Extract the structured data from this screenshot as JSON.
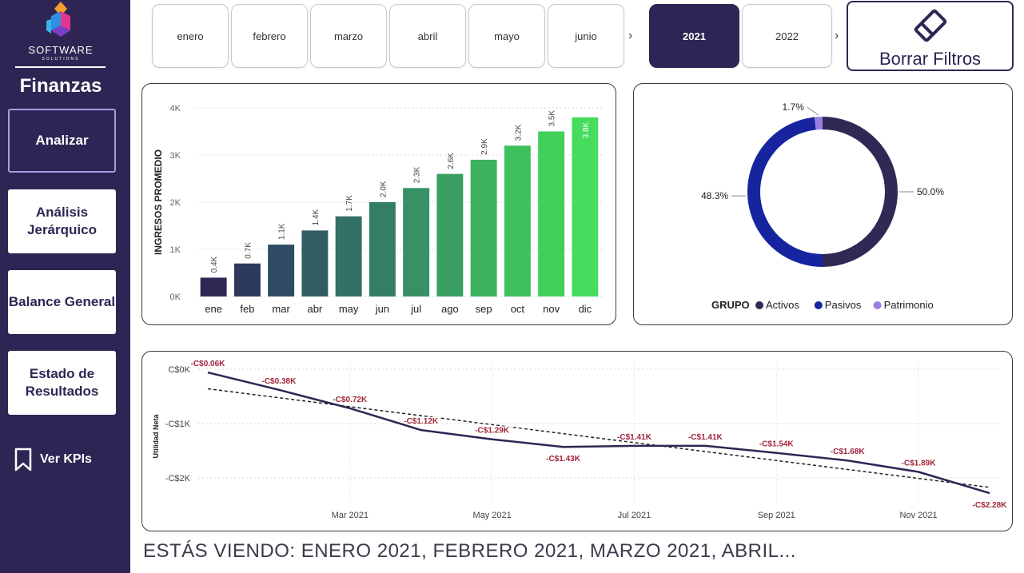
{
  "sidebar": {
    "logo_text": "SOFTWARE",
    "logo_sub": "SOLUTIONS",
    "title": "Finanzas",
    "nav": [
      {
        "label": "Analizar",
        "active": true
      },
      {
        "label": "Análisis Jerárquico",
        "active": false
      },
      {
        "label": "Balance General",
        "active": false
      },
      {
        "label": "Estado de Resultados",
        "active": false
      }
    ],
    "kpi_label": "Ver KPIs",
    "kpi_icon": "bookmark-icon"
  },
  "months": [
    "enero",
    "febrero",
    "marzo",
    "abril",
    "mayo",
    "junio"
  ],
  "years": [
    {
      "label": "2021",
      "selected": true
    },
    {
      "label": "2022",
      "selected": false
    }
  ],
  "clear_filters": {
    "label": "Borrar Filtros",
    "icon": "eraser-icon"
  },
  "colors": {
    "sidebar": "#2f2554",
    "activos": "#2e2955",
    "pasivos": "#1624a0",
    "patrimonio": "#9a7fe0",
    "line": "#2f2554",
    "neg_label": "#a0263a"
  },
  "chart_data": [
    {
      "type": "bar",
      "ylabel": "INGRESOS PROMEDIO",
      "categories": [
        "ene",
        "feb",
        "mar",
        "abr",
        "may",
        "jun",
        "jul",
        "ago",
        "sep",
        "oct",
        "nov",
        "dic"
      ],
      "values": [
        0.4,
        0.7,
        1.1,
        1.4,
        1.7,
        2.0,
        2.3,
        2.6,
        2.9,
        3.2,
        3.5,
        3.8
      ],
      "value_labels": [
        "0.4K",
        "0.7K",
        "1.1K",
        "1.4K",
        "1.7K",
        "2.0K",
        "2.3K",
        "2.6K",
        "2.9K",
        "3.2K",
        "3.5K",
        "3.8K"
      ],
      "yticks": [
        "0K",
        "1K",
        "2K",
        "3K",
        "4K"
      ],
      "ylim": [
        0,
        4
      ],
      "unit": "K",
      "colors": [
        "#2e2854",
        "#2d3a5e",
        "#2f4a63",
        "#315c64",
        "#337065",
        "#357e66",
        "#389066",
        "#3aa062",
        "#3cb15e",
        "#3ec05c",
        "#40cf5a",
        "#47dc5e"
      ],
      "grid": true
    },
    {
      "type": "pie",
      "variant": "donut",
      "legend_title": "GRUPO",
      "labels": [
        "Activos",
        "Pasivos",
        "Patrimonio"
      ],
      "values": [
        50.0,
        48.3,
        1.7
      ],
      "value_labels": [
        "50.0%",
        "48.3%",
        "1.7%"
      ],
      "colors": [
        "#2e2955",
        "#1624a0",
        "#9a7fe0"
      ],
      "legend_position": "bottom"
    },
    {
      "type": "line",
      "ylabel": "Utilidad Neta",
      "x": [
        "2021-01",
        "2021-02",
        "2021-03",
        "2021-04",
        "2021-05",
        "2021-06",
        "2021-07",
        "2021-08",
        "2021-09",
        "2021-10",
        "2021-11",
        "2021-12"
      ],
      "values": [
        -0.06,
        -0.38,
        -0.72,
        -1.12,
        -1.29,
        -1.43,
        -1.41,
        -1.41,
        -1.54,
        -1.68,
        -1.89,
        -2.28
      ],
      "value_labels": [
        "-C$0.06K",
        "-C$0.38K",
        "-C$0.72K",
        "-C$1.12K",
        "-C$1.29K",
        "-C$1.43K",
        "-C$1.41K",
        "-C$1.41K",
        "-C$1.54K",
        "-C$1.68K",
        "-C$1.89K",
        "-C$2.28K"
      ],
      "xticks": [
        "Mar 2021",
        "May 2021",
        "Jul 2021",
        "Sep 2021",
        "Nov 2021"
      ],
      "xtick_months": [
        "2021-03",
        "2021-05",
        "2021-07",
        "2021-09",
        "2021-11"
      ],
      "yticks": [
        "C$0K",
        "-C$1K",
        "-C$2K"
      ],
      "ytick_values": [
        0,
        -1,
        -2
      ],
      "trendline": true,
      "grid": true
    }
  ],
  "footer_text": "ESTÁS VIENDO: ENERO 2021, FEBRERO 2021, MARZO 2021, ABRIL..."
}
